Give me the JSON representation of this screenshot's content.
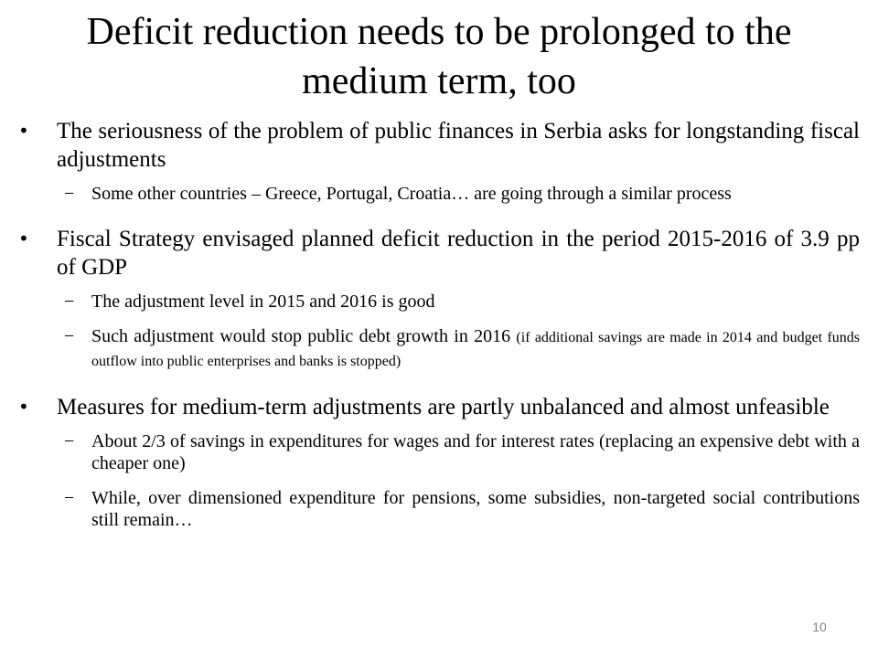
{
  "slide": {
    "title": "Deficit reduction needs to be prolonged to the medium term, too",
    "page_number": "10",
    "bullet_marker": "•",
    "sub_marker": "−",
    "bullets": [
      {
        "text": "The seriousness of the problem of public finances in Serbia asks for longstanding fiscal adjustments",
        "subs": [
          {
            "text": "Some other countries – Greece, Portugal, Croatia… are going through a similar process"
          }
        ]
      },
      {
        "text": "Fiscal Strategy envisaged planned deficit reduction in the period 2015-2016 of 3.9 pp of GDP",
        "subs": [
          {
            "text": "The adjustment level in 2015 and 2016 is good"
          },
          {
            "text": "Such adjustment would stop public debt growth in 2016",
            "note": "(if additional savings are made in 2014 and budget funds outflow into public enterprises and banks is stopped)"
          }
        ]
      },
      {
        "text": "Measures for medium-term adjustments are partly unbalanced and almost unfeasible",
        "subs": [
          {
            "text": "About 2/3 of savings in expenditures for wages and for interest rates (replacing an expensive debt with a cheaper one)"
          },
          {
            "text": "While, over dimensioned expenditure for pensions, some subsidies, non-targeted social contributions still remain…"
          }
        ]
      }
    ]
  }
}
